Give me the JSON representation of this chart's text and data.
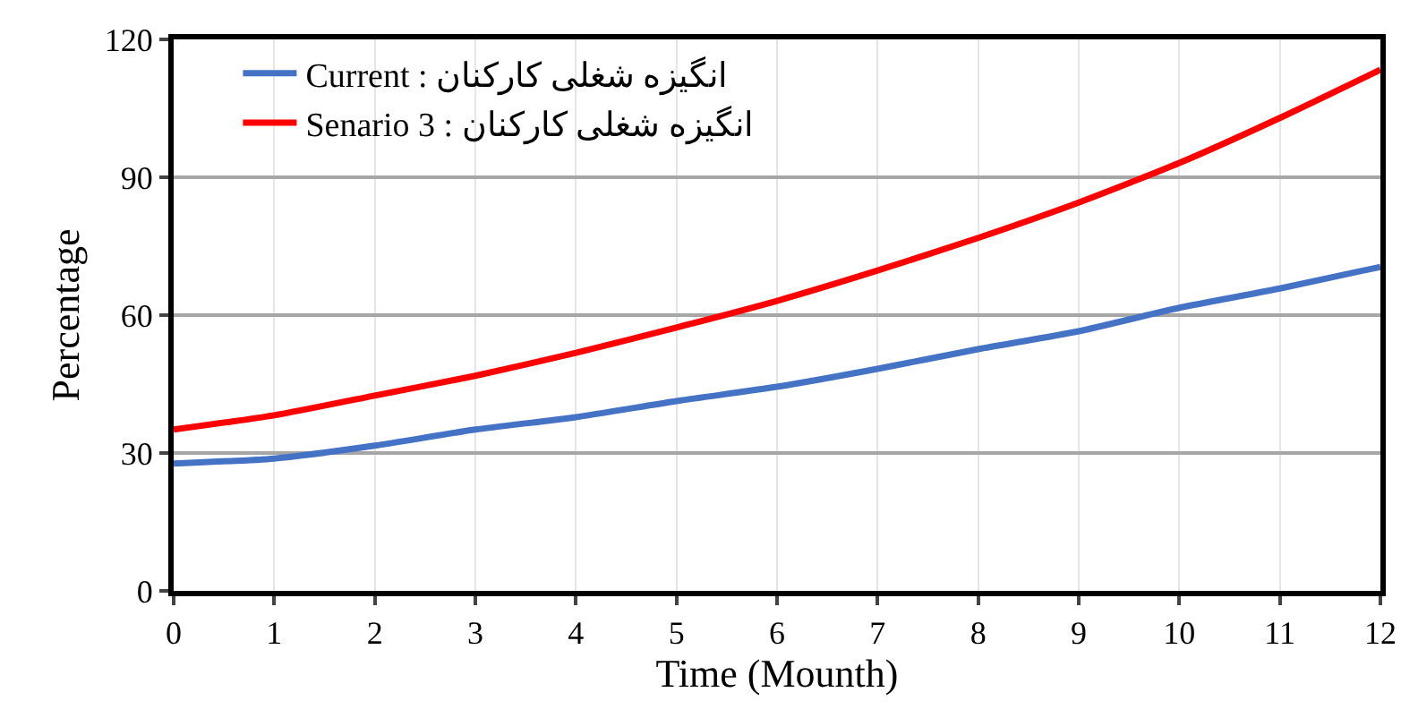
{
  "chart_data": {
    "type": "line",
    "xlabel": "Time (Mounth)",
    "ylabel": "Percentage",
    "x": [
      0,
      1,
      2,
      3,
      4,
      5,
      6,
      7,
      8,
      9,
      10,
      11,
      12
    ],
    "series": [
      {
        "name": "Current : انگیزه شغلی کارکنان",
        "color": "#4472c4",
        "values": [
          27.7,
          28.8,
          31.6,
          35.1,
          37.8,
          41.3,
          44.4,
          48.3,
          52.6,
          56.5,
          61.6,
          65.8,
          70.5
        ]
      },
      {
        "name": "Senario 3 : انگیزه شغلی کارکنان",
        "color": "#ff0000",
        "values": [
          35.1,
          38.2,
          42.5,
          46.8,
          51.8,
          57.3,
          63.1,
          69.7,
          76.8,
          84.5,
          93.1,
          102.9,
          113.4
        ]
      }
    ],
    "xlim": [
      0,
      12
    ],
    "xticks": [
      0,
      1,
      2,
      3,
      4,
      5,
      6,
      7,
      8,
      9,
      10,
      11,
      12
    ],
    "ylim": [
      0,
      120
    ],
    "yticks": [
      0,
      30,
      60,
      90,
      120
    ],
    "grid": true,
    "legend": "top left",
    "marker": "none",
    "line_style": "solid"
  }
}
